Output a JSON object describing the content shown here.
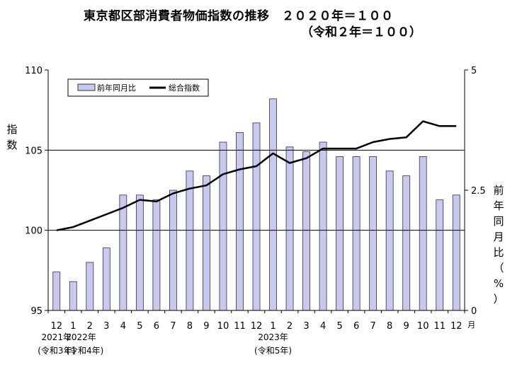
{
  "title": "東京都区部消費者物価指数の推移　２０２０年＝１００",
  "subtitle": "（令和２年＝１００）",
  "chart_data": {
    "type": "bar",
    "categories": [
      "12",
      "1",
      "2",
      "3",
      "4",
      "5",
      "6",
      "7",
      "8",
      "9",
      "10",
      "11",
      "12",
      "1",
      "2",
      "3",
      "4",
      "5",
      "6",
      "7",
      "8",
      "9",
      "10",
      "11",
      "12"
    ],
    "x_unit": "月",
    "year_labels": [
      {
        "year": "2021年",
        "era": "(令和3年)"
      },
      {
        "year": "2022年",
        "era": "(令和4年)"
      },
      {
        "year": "2023年",
        "era": "(令和5年)"
      }
    ],
    "left_axis": {
      "label": "指数",
      "ylim": [
        95,
        110
      ],
      "ticks": [
        "95",
        "100",
        "105",
        "110"
      ]
    },
    "right_axis": {
      "label": "前年同月比（%）",
      "ylim": [
        0,
        5
      ],
      "ticks": [
        "0",
        "2.5",
        "5"
      ]
    },
    "series": [
      {
        "name": "前年同月比",
        "type": "bar",
        "axis": "right",
        "color": "#c8c8f0",
        "values": [
          0.8,
          0.6,
          1.0,
          1.3,
          2.4,
          2.4,
          2.3,
          2.5,
          2.9,
          2.8,
          3.5,
          3.7,
          3.9,
          4.4,
          3.4,
          3.3,
          3.5,
          3.2,
          3.2,
          3.2,
          2.9,
          2.8,
          3.2,
          2.3,
          2.4
        ]
      },
      {
        "name": "総合指数",
        "type": "line",
        "axis": "left",
        "color": "#000000",
        "values": [
          100.0,
          100.2,
          100.6,
          101.0,
          101.4,
          101.9,
          101.8,
          102.3,
          102.6,
          102.8,
          103.5,
          103.8,
          104.0,
          104.8,
          104.2,
          104.5,
          105.1,
          105.1,
          105.1,
          105.5,
          105.7,
          105.8,
          106.8,
          106.5,
          106.5
        ]
      }
    ],
    "gridlines": [
      100,
      105
    ],
    "legend": "top-left"
  }
}
